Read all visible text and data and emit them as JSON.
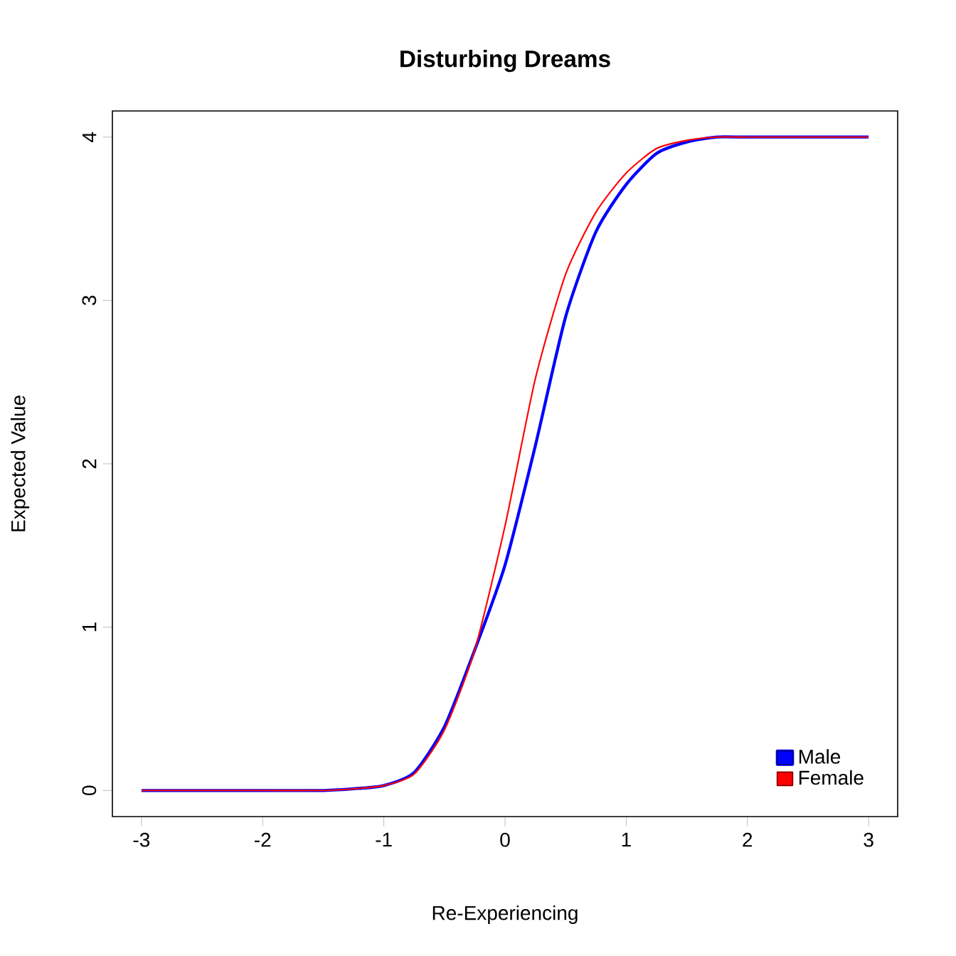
{
  "chart_data": {
    "type": "line",
    "title": "Disturbing Dreams",
    "xlabel": "Re-Experiencing",
    "ylabel": "Expected Value",
    "x": [
      -3,
      -2,
      -1.5,
      -1.25,
      -1,
      -0.75,
      -0.5,
      -0.25,
      0,
      0.25,
      0.5,
      0.75,
      1,
      1.25,
      1.5,
      1.75,
      2,
      2.5,
      3
    ],
    "series": [
      {
        "name": "Male",
        "color": "#0000ff",
        "values": [
          0,
          0,
          0,
          0.01,
          0.03,
          0.11,
          0.39,
          0.86,
          1.38,
          2.11,
          2.9,
          3.42,
          3.71,
          3.9,
          3.97,
          4,
          4,
          4,
          4
        ]
      },
      {
        "name": "Female",
        "color": "#ff0000",
        "values": [
          0,
          0,
          0,
          0.01,
          0.03,
          0.1,
          0.37,
          0.86,
          1.62,
          2.52,
          3.16,
          3.54,
          3.78,
          3.93,
          3.98,
          4,
          4,
          4,
          4
        ]
      }
    ],
    "xlim": [
      -3.24,
      3.24
    ],
    "ylim": [
      -0.16,
      4.16
    ],
    "xticks": [
      -3,
      -2,
      -1,
      0,
      1,
      2,
      3
    ],
    "yticks": [
      0,
      1,
      2,
      3,
      4
    ],
    "legend": "bottom right",
    "grid": false,
    "marker": "none",
    "line_style": "solid"
  }
}
